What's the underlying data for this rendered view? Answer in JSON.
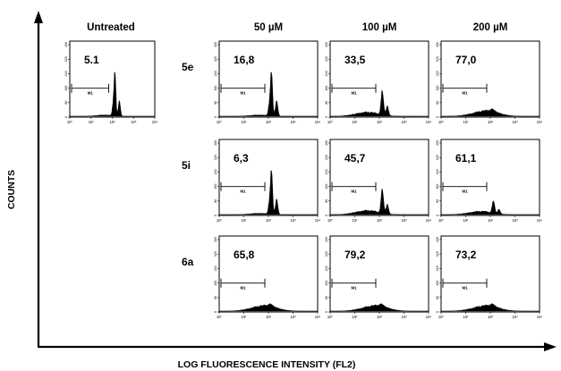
{
  "chart_data": {
    "type": "area",
    "title": "",
    "xlabel": "LOG FLUORESCENCE INTENSITY (FL2)",
    "ylabel": "COUNTS",
    "x_scale": "log",
    "xlim": [
      1,
      10000
    ],
    "ylim": [
      0,
      400
    ],
    "x_tick_labels": [
      "10⁰",
      "10¹",
      "10²",
      "10³",
      "10⁴"
    ],
    "y_tick_labels": [
      "0",
      "80",
      "160",
      "240",
      "320",
      "400"
    ],
    "gate_label": "M1",
    "gate_range": [
      1,
      100
    ],
    "concentrations": [
      "50 µM",
      "100 µM",
      "200 µM"
    ],
    "untreated": {
      "column_label": "Untreated",
      "value": "5.1",
      "profile": "narrow"
    },
    "compounds": [
      {
        "name": "5e",
        "values": [
          "16,8",
          "33,5",
          "77,0"
        ],
        "profiles": [
          "narrow",
          "mixed",
          "broad"
        ]
      },
      {
        "name": "5i",
        "values": [
          "6,3",
          "45,7",
          "61,1"
        ],
        "profiles": [
          "narrow",
          "mixed",
          "mixed-low"
        ]
      },
      {
        "name": "6a",
        "values": [
          "65,8",
          "79,2",
          "73,2"
        ],
        "profiles": [
          "broad",
          "broad",
          "broad"
        ]
      }
    ]
  }
}
